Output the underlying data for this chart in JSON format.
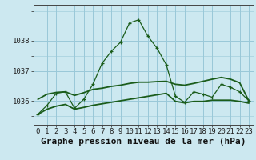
{
  "title": "Graphe pression niveau de la mer (hPa)",
  "background_color": "#cce8f0",
  "line_color": "#1a5c1a",
  "grid_color": "#99c8d8",
  "x_ticks": [
    0,
    1,
    2,
    3,
    4,
    5,
    6,
    7,
    8,
    9,
    10,
    11,
    12,
    13,
    14,
    15,
    16,
    17,
    18,
    19,
    20,
    21,
    22,
    23
  ],
  "ylim": [
    1035.2,
    1039.2
  ],
  "xlim": [
    -0.5,
    23.5
  ],
  "main_line": [
    1035.55,
    1035.85,
    1036.25,
    1036.3,
    1035.75,
    1036.05,
    1036.55,
    1037.25,
    1037.65,
    1037.95,
    1038.6,
    1038.7,
    1038.15,
    1037.75,
    1037.2,
    1036.15,
    1035.95,
    1036.3,
    1036.22,
    1036.12,
    1036.55,
    1036.45,
    1036.3,
    1036.0
  ],
  "line_upper": [
    1036.05,
    1036.22,
    1036.28,
    1036.3,
    1036.18,
    1036.27,
    1036.38,
    1036.42,
    1036.48,
    1036.52,
    1036.58,
    1036.62,
    1036.62,
    1036.64,
    1036.65,
    1036.55,
    1036.52,
    1036.58,
    1036.65,
    1036.72,
    1036.78,
    1036.72,
    1036.6,
    1036.0
  ],
  "line_lower": [
    1035.55,
    1035.72,
    1035.82,
    1035.88,
    1035.72,
    1035.78,
    1035.85,
    1035.9,
    1035.95,
    1036.0,
    1036.05,
    1036.1,
    1036.15,
    1036.2,
    1036.25,
    1035.98,
    1035.93,
    1035.98,
    1035.98,
    1036.02,
    1036.02,
    1036.02,
    1035.98,
    1035.92
  ],
  "yticks": [
    1036,
    1037,
    1038
  ],
  "title_fontsize": 8,
  "tick_fontsize": 6.5,
  "figsize": [
    3.2,
    2.0
  ],
  "dpi": 100
}
